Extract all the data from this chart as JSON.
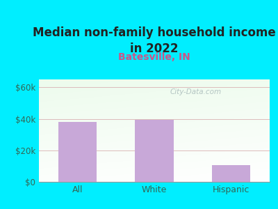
{
  "title": "Median non-family household income\nin 2022",
  "subtitle": "Batesville, IN",
  "categories": [
    "All",
    "White",
    "Hispanic"
  ],
  "values": [
    38000,
    39500,
    10500
  ],
  "bar_color": "#c8a8d8",
  "title_fontsize": 12,
  "subtitle_fontsize": 10,
  "subtitle_color": "#cc5588",
  "title_color": "#222222",
  "tick_label_color": "#336655",
  "background_outer": "#00eeff",
  "plot_bg_top": "#d8edd8",
  "plot_bg_bottom": "#f8fff4",
  "ylim": [
    0,
    65000
  ],
  "yticks": [
    0,
    20000,
    40000,
    60000
  ],
  "ytick_labels": [
    "$0",
    "$20k",
    "$40k",
    "$60k"
  ],
  "watermark": "City-Data.com",
  "watermark_color": "#aabbbb",
  "grid_color": "#ddbbbb"
}
